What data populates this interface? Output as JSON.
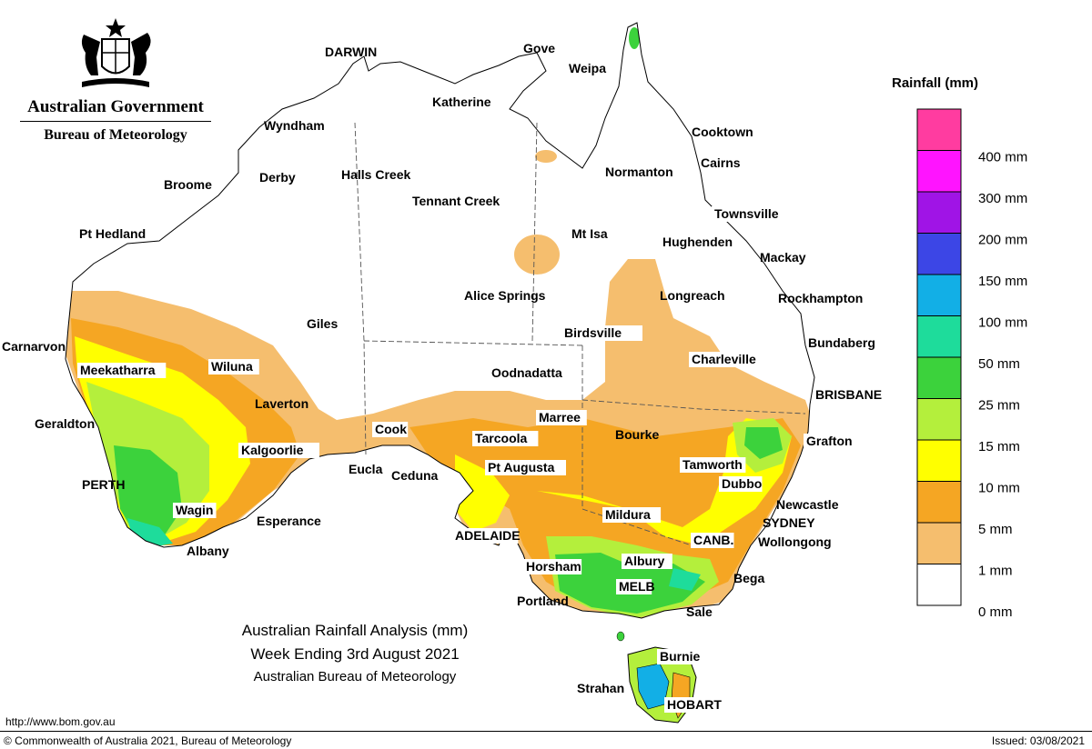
{
  "header": {
    "government": "Australian Government",
    "bureau": "Bureau of Meteorology",
    "crest_icon": "commonwealth-coat-of-arms"
  },
  "title": {
    "line1": "Australian Rainfall Analysis (mm)",
    "line2": "Week Ending 3rd August 2021",
    "line3": "Australian Bureau of Meteorology"
  },
  "footer": {
    "url": "http://www.bom.gov.au",
    "copyright": "© Commonwealth of Australia 2021, Bureau of Meteorology",
    "issued": "Issued: 03/08/2021"
  },
  "legend": {
    "title": "Rainfall (mm)",
    "bins": [
      {
        "label": "0 mm",
        "color": "#ffffff"
      },
      {
        "label": "1 mm",
        "color": "#f5be6e"
      },
      {
        "label": "5 mm",
        "color": "#f5a623"
      },
      {
        "label": "10 mm",
        "color": "#ffff00"
      },
      {
        "label": "15 mm",
        "color": "#b4ef3c"
      },
      {
        "label": "25 mm",
        "color": "#3cd23c"
      },
      {
        "label": "50 mm",
        "color": "#1edc9b"
      },
      {
        "label": "100 mm",
        "color": "#12afe6"
      },
      {
        "label": "150 mm",
        "color": "#3c46e6"
      },
      {
        "label": "200 mm",
        "color": "#a014e6"
      },
      {
        "label": "300 mm",
        "color": "#ff14ff"
      },
      {
        "label": "400 mm",
        "color": "#ff3ca0"
      }
    ]
  },
  "places": [
    {
      "name": "DARWIN"
    },
    {
      "name": "Gove"
    },
    {
      "name": "Weipa"
    },
    {
      "name": "Katherine"
    },
    {
      "name": "Wyndham"
    },
    {
      "name": "Cooktown"
    },
    {
      "name": "Cairns"
    },
    {
      "name": "Normanton"
    },
    {
      "name": "Halls Creek"
    },
    {
      "name": "Broome"
    },
    {
      "name": "Derby"
    },
    {
      "name": "Tennant Creek"
    },
    {
      "name": "Townsville"
    },
    {
      "name": "Mt Isa"
    },
    {
      "name": "Hughenden"
    },
    {
      "name": "Pt Hedland"
    },
    {
      "name": "Mackay"
    },
    {
      "name": "Alice Springs"
    },
    {
      "name": "Longreach"
    },
    {
      "name": "Rockhampton"
    },
    {
      "name": "Giles"
    },
    {
      "name": "Birdsville"
    },
    {
      "name": "Bundaberg"
    },
    {
      "name": "Carnarvon"
    },
    {
      "name": "Charleville"
    },
    {
      "name": "Meekatharra"
    },
    {
      "name": "Wiluna"
    },
    {
      "name": "Oodnadatta"
    },
    {
      "name": "BRISBANE"
    },
    {
      "name": "Laverton"
    },
    {
      "name": "Geraldton"
    },
    {
      "name": "Marree"
    },
    {
      "name": "Cook"
    },
    {
      "name": "Bourke"
    },
    {
      "name": "Tarcoola"
    },
    {
      "name": "Grafton"
    },
    {
      "name": "Kalgoorlie"
    },
    {
      "name": "Eucla"
    },
    {
      "name": "Pt Augusta"
    },
    {
      "name": "Tamworth"
    },
    {
      "name": "Ceduna"
    },
    {
      "name": "Dubbo"
    },
    {
      "name": "PERTH"
    },
    {
      "name": "Newcastle"
    },
    {
      "name": "Wagin"
    },
    {
      "name": "Mildura"
    },
    {
      "name": "SYDNEY"
    },
    {
      "name": "Esperance"
    },
    {
      "name": "ADELAIDE"
    },
    {
      "name": "CANB."
    },
    {
      "name": "Wollongong"
    },
    {
      "name": "Albany"
    },
    {
      "name": "Albury"
    },
    {
      "name": "Horsham"
    },
    {
      "name": "Bega"
    },
    {
      "name": "MELB"
    },
    {
      "name": "Portland"
    },
    {
      "name": "Sale"
    },
    {
      "name": "Burnie"
    },
    {
      "name": "Strahan"
    },
    {
      "name": "HOBART"
    }
  ]
}
